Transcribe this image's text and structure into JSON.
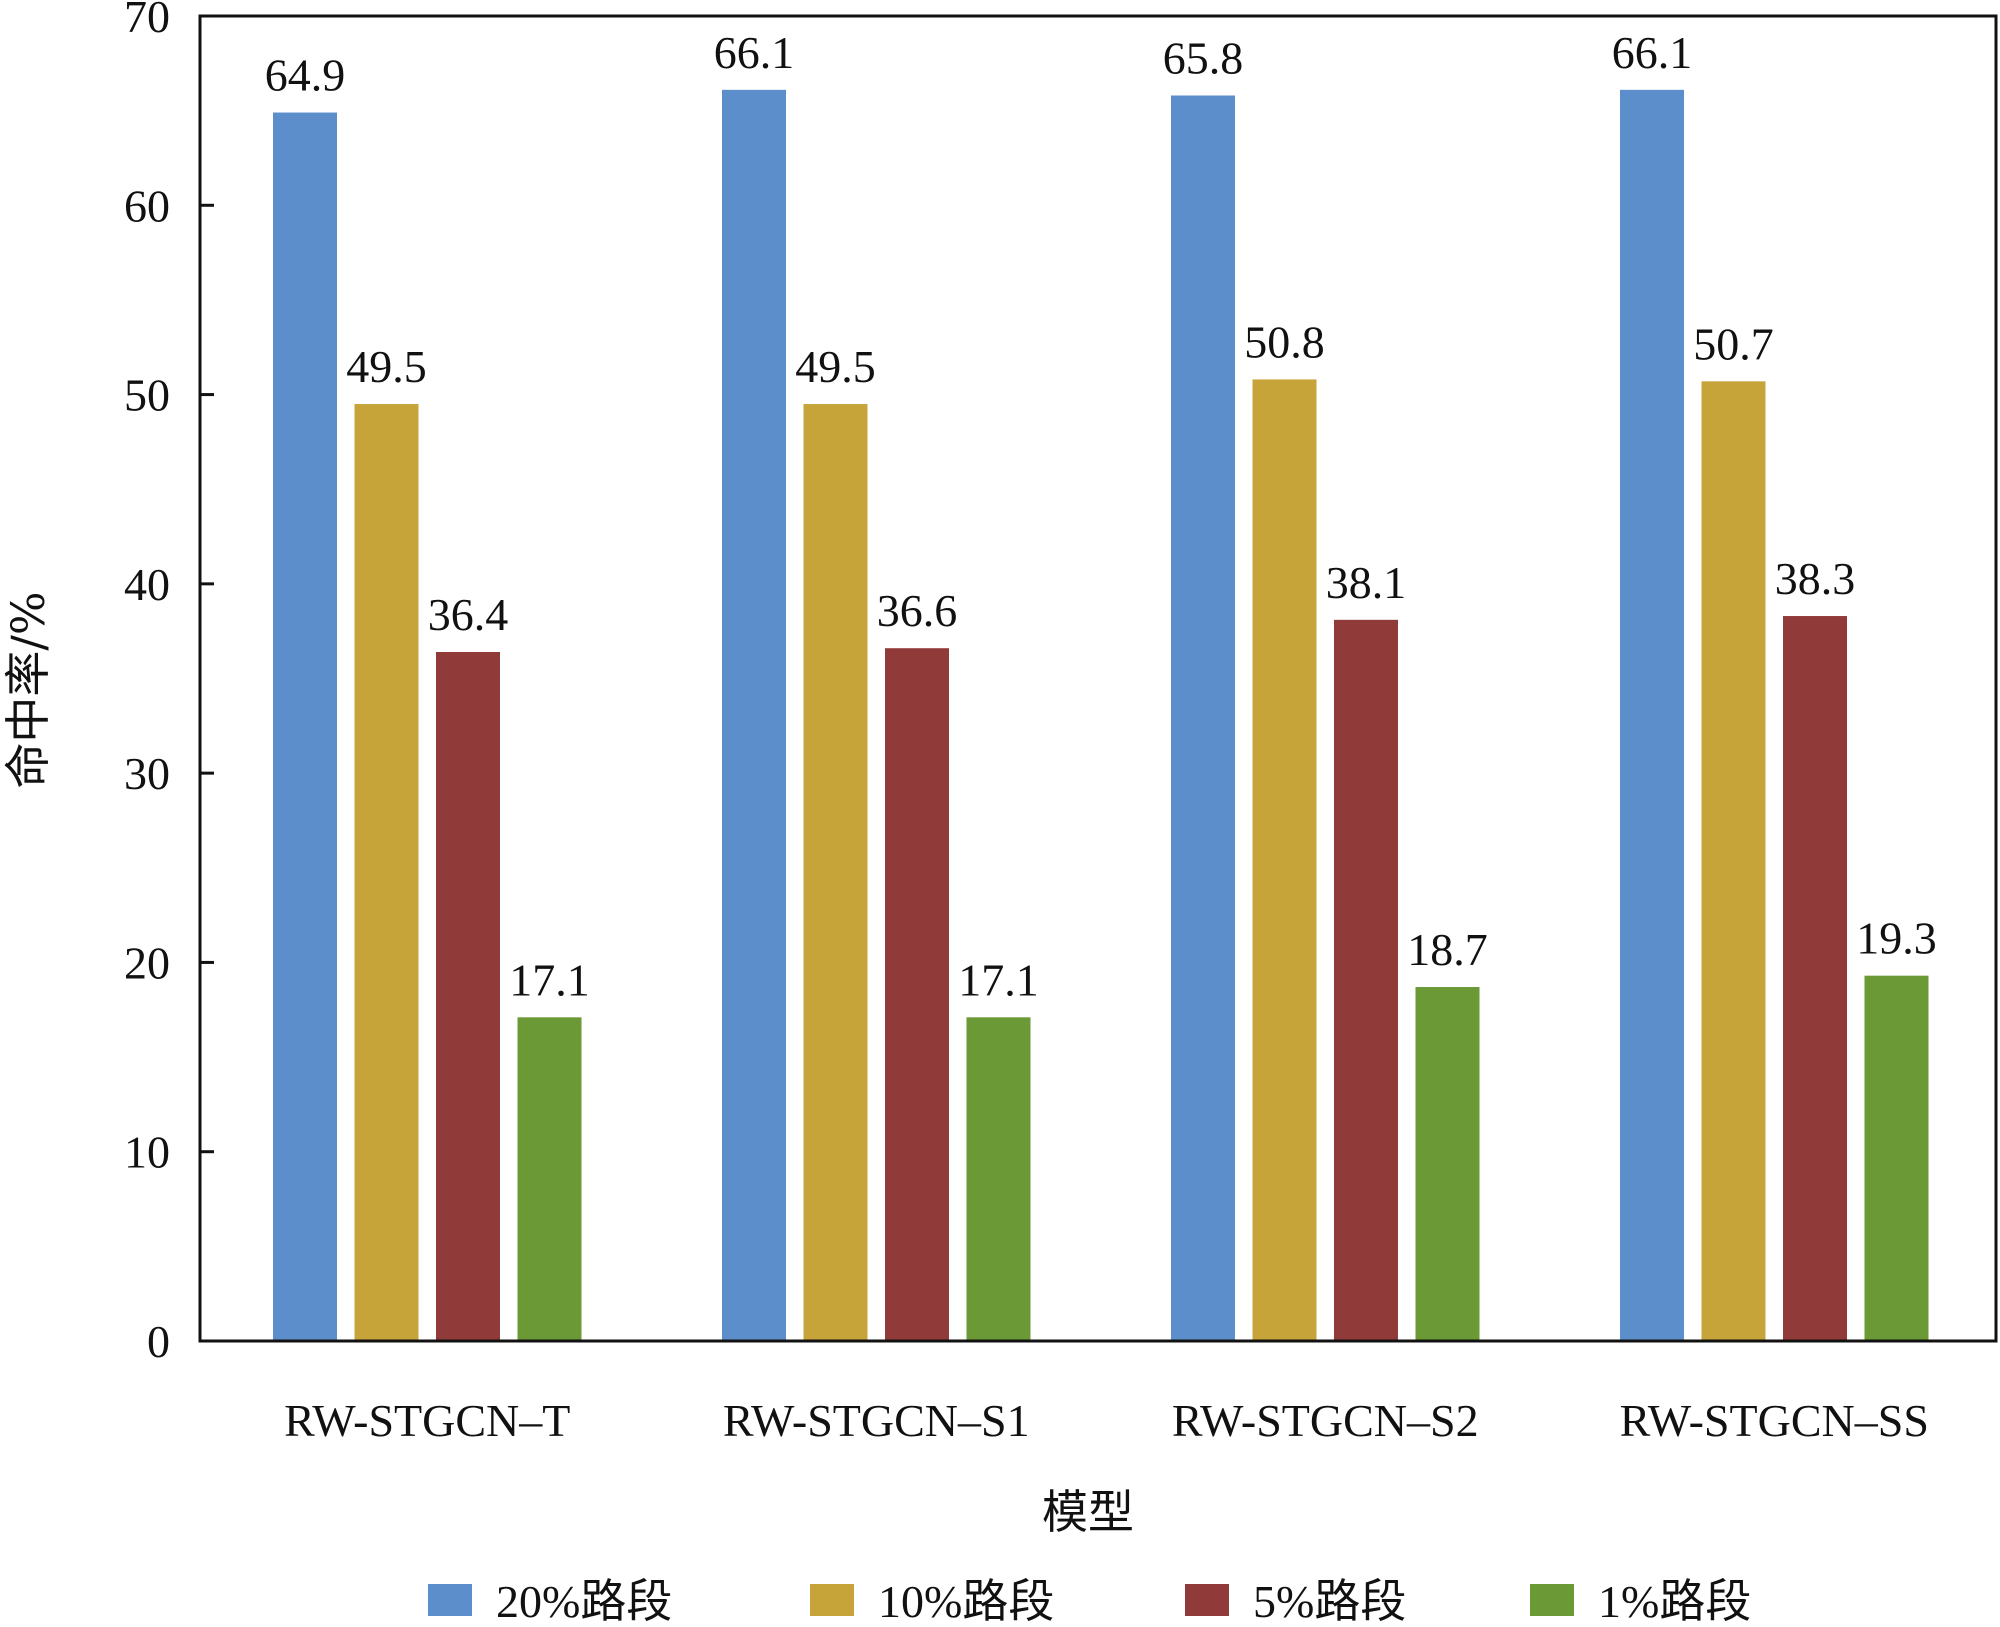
{
  "chart_data": {
    "type": "bar",
    "categories": [
      "RW-STGCN–T",
      "RW-STGCN–S1",
      "RW-STGCN–S2",
      "RW-STGCN–SS"
    ],
    "series": [
      {
        "name": "20%路段",
        "color": "#5b8ecb",
        "values": [
          64.9,
          66.1,
          65.8,
          66.1
        ]
      },
      {
        "name": "10%路段",
        "color": "#c6a43a",
        "values": [
          49.5,
          49.5,
          50.8,
          50.7
        ]
      },
      {
        "name": "5%路段",
        "color": "#903a3a",
        "values": [
          36.4,
          36.6,
          38.1,
          38.3
        ]
      },
      {
        "name": "1%路段",
        "color": "#6a9935",
        "values": [
          17.1,
          17.1,
          18.7,
          19.3
        ]
      }
    ],
    "xlabel": "模型",
    "ylabel": "命中率/%",
    "ylim": [
      0,
      70
    ],
    "yticks": [
      0,
      10,
      20,
      30,
      40,
      50,
      60,
      70
    ],
    "grid": false,
    "legend_position": "bottom"
  }
}
